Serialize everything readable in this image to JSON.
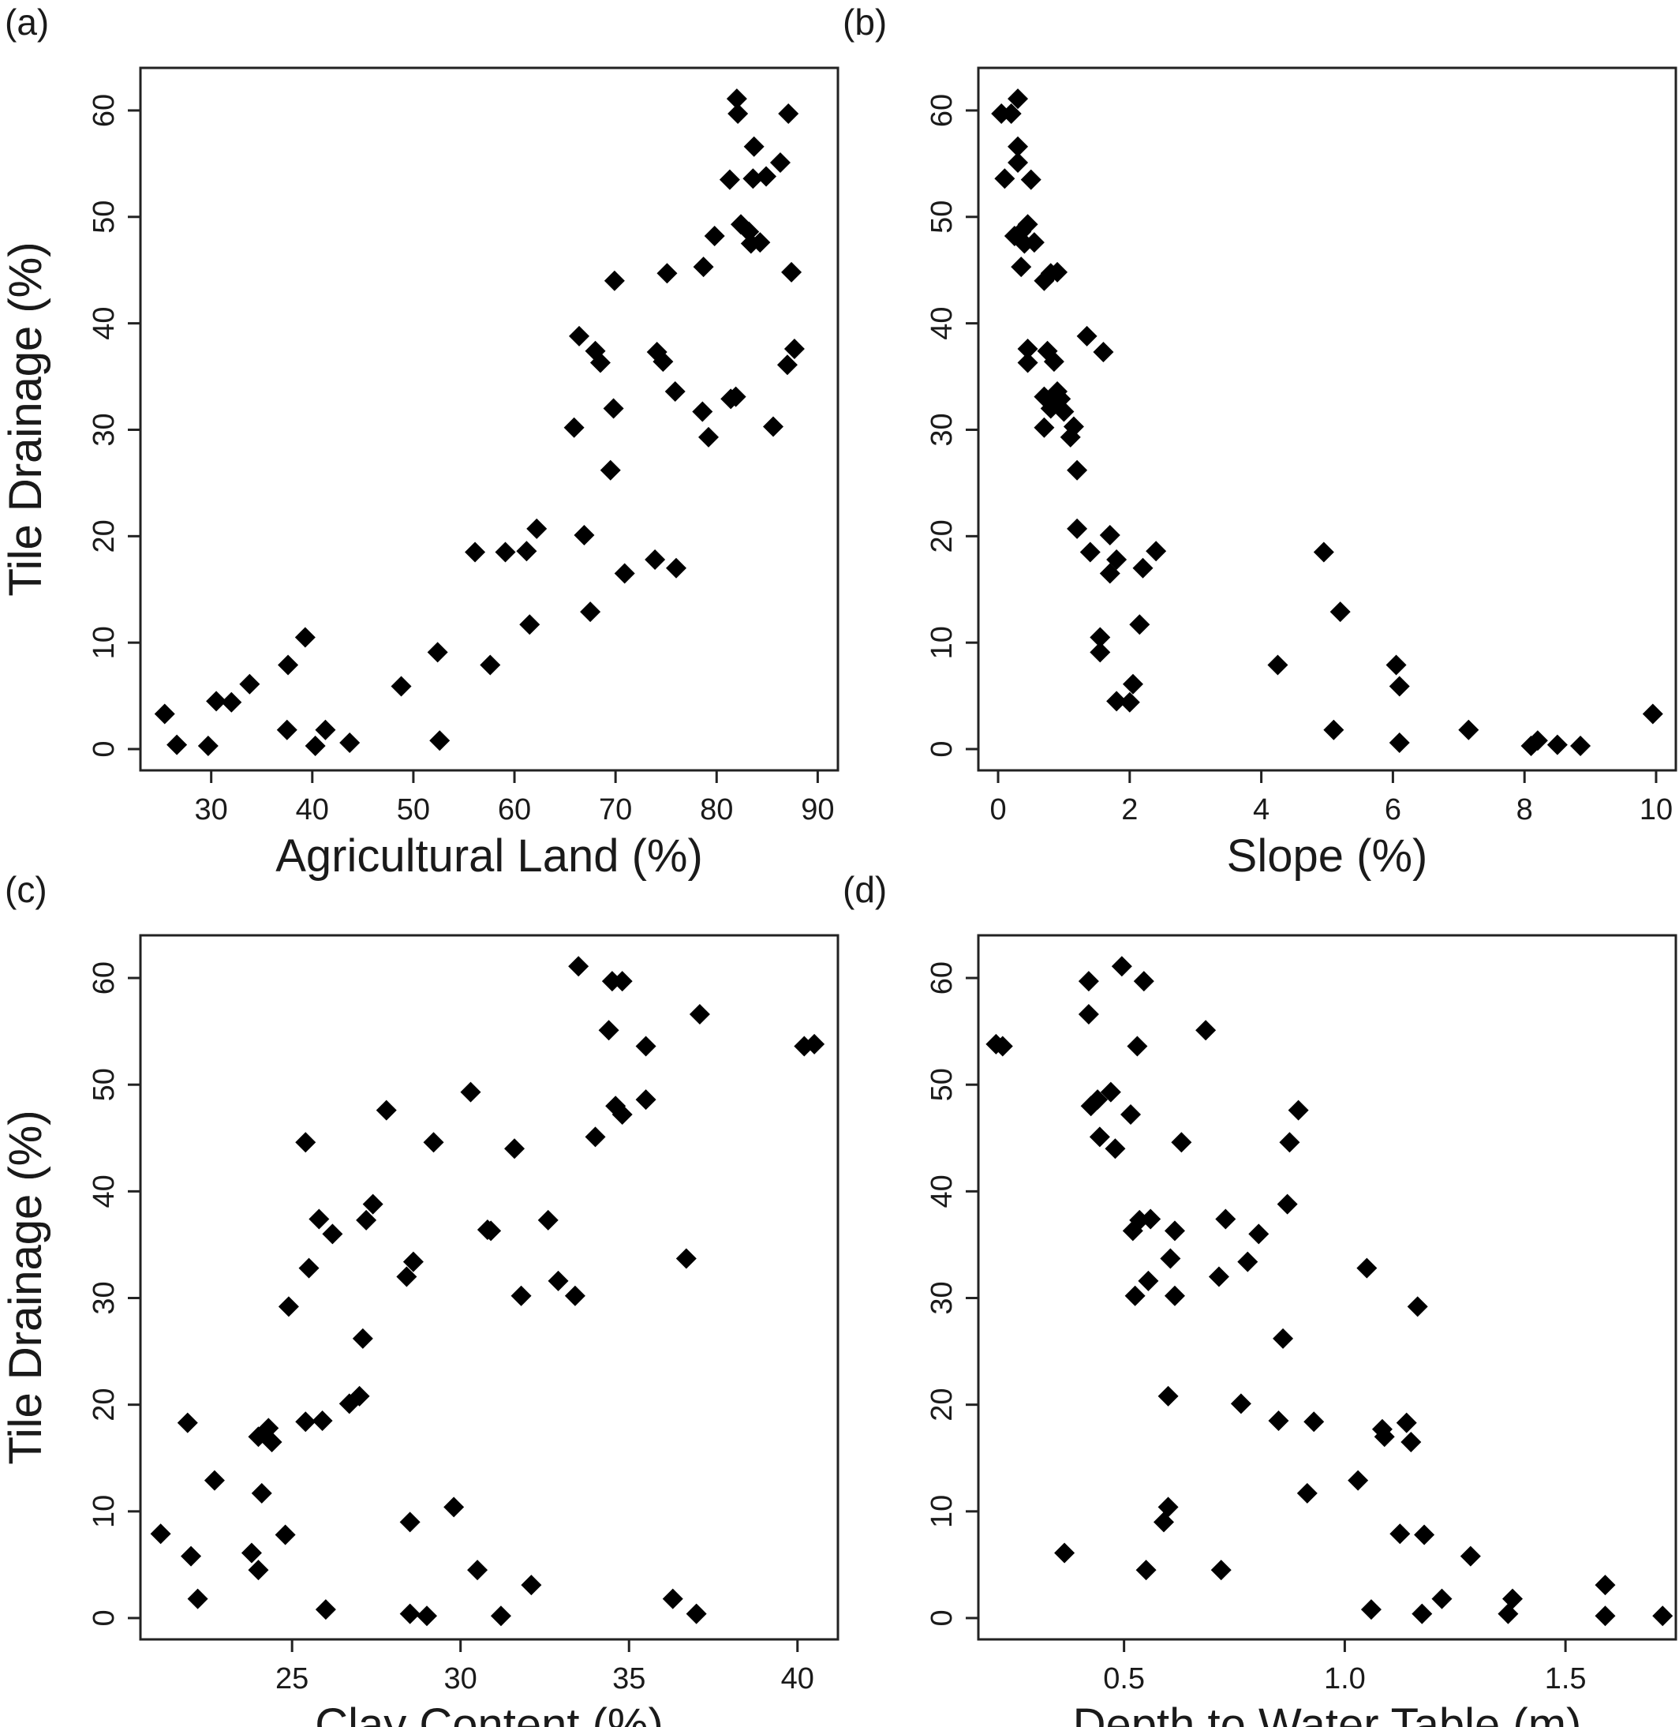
{
  "chart_data": [
    {
      "type": "scatter",
      "panel_label": "(a)",
      "xlabel": "Agricultural Land (%)",
      "ylabel": "Tile Drainage (%)",
      "xlim": [
        23,
        92
      ],
      "ylim": [
        -2,
        64
      ],
      "xticks": [
        30,
        40,
        50,
        60,
        70,
        80,
        90
      ],
      "yticks": [
        0,
        10,
        20,
        30,
        40,
        50,
        60
      ],
      "x_tick_labels": [
        "30",
        "40",
        "50",
        "60",
        "70",
        "80",
        "90"
      ],
      "y_tick_labels": [
        "0",
        "10",
        "20",
        "30",
        "40",
        "50",
        "60"
      ],
      "marker": "diamond",
      "color": "#000000",
      "points": [
        [
          25.4,
          3.3
        ],
        [
          26.6,
          0.4
        ],
        [
          29.7,
          0.3
        ],
        [
          30.5,
          4.5
        ],
        [
          32.0,
          4.4
        ],
        [
          33.8,
          6.1
        ],
        [
          37.5,
          1.8
        ],
        [
          37.6,
          7.9
        ],
        [
          39.3,
          10.5
        ],
        [
          40.3,
          0.3
        ],
        [
          41.3,
          1.8
        ],
        [
          43.7,
          0.6
        ],
        [
          48.8,
          5.9
        ],
        [
          52.4,
          9.1
        ],
        [
          52.6,
          0.8
        ],
        [
          56.1,
          18.5
        ],
        [
          57.6,
          7.9
        ],
        [
          59.1,
          18.5
        ],
        [
          61.2,
          18.6
        ],
        [
          61.5,
          11.7
        ],
        [
          62.2,
          20.7
        ],
        [
          65.9,
          30.2
        ],
        [
          66.4,
          38.8
        ],
        [
          66.9,
          20.1
        ],
        [
          67.5,
          12.9
        ],
        [
          68.0,
          37.4
        ],
        [
          68.5,
          36.3
        ],
        [
          69.5,
          26.2
        ],
        [
          69.8,
          32.0
        ],
        [
          69.9,
          44.0
        ],
        [
          70.9,
          16.5
        ],
        [
          73.9,
          17.8
        ],
        [
          74.1,
          37.3
        ],
        [
          74.7,
          36.4
        ],
        [
          75.1,
          44.7
        ],
        [
          75.9,
          33.6
        ],
        [
          76.0,
          17.0
        ],
        [
          78.6,
          31.7
        ],
        [
          78.7,
          45.3
        ],
        [
          79.2,
          29.3
        ],
        [
          79.8,
          48.2
        ],
        [
          81.3,
          53.5
        ],
        [
          81.4,
          32.9
        ],
        [
          81.9,
          33.1
        ],
        [
          82.0,
          61.1
        ],
        [
          82.1,
          59.7
        ],
        [
          82.4,
          49.3
        ],
        [
          83.2,
          48.6
        ],
        [
          83.4,
          47.5
        ],
        [
          83.6,
          53.6
        ],
        [
          83.7,
          56.6
        ],
        [
          84.3,
          47.6
        ],
        [
          84.9,
          53.8
        ],
        [
          85.6,
          30.3
        ],
        [
          86.3,
          55.1
        ],
        [
          87.0,
          36.1
        ],
        [
          87.1,
          59.7
        ],
        [
          87.4,
          44.8
        ],
        [
          87.7,
          37.6
        ]
      ]
    },
    {
      "type": "scatter",
      "panel_label": "(b)",
      "xlabel": "Slope (%)",
      "ylabel": "Tile Drainage (%)",
      "xlim": [
        -0.3,
        10.3
      ],
      "ylim": [
        -2,
        64
      ],
      "xticks": [
        0,
        2,
        4,
        6,
        8,
        10
      ],
      "yticks": [
        0,
        10,
        20,
        30,
        40,
        50,
        60
      ],
      "x_tick_labels": [
        "0",
        "2",
        "4",
        "6",
        "8",
        "10"
      ],
      "y_tick_labels": [
        "0",
        "10",
        "20",
        "30",
        "40",
        "50",
        "60"
      ],
      "marker": "diamond",
      "color": "#000000",
      "points": [
        [
          0.05,
          59.7
        ],
        [
          0.1,
          53.6
        ],
        [
          0.2,
          59.7
        ],
        [
          0.25,
          48.2
        ],
        [
          0.3,
          61.1
        ],
        [
          0.3,
          55.1
        ],
        [
          0.3,
          56.6
        ],
        [
          0.35,
          48.6
        ],
        [
          0.35,
          45.3
        ],
        [
          0.4,
          47.5
        ],
        [
          0.45,
          49.3
        ],
        [
          0.45,
          37.6
        ],
        [
          0.45,
          36.3
        ],
        [
          0.5,
          53.5
        ],
        [
          0.55,
          47.6
        ],
        [
          0.7,
          44.0
        ],
        [
          0.7,
          33.1
        ],
        [
          0.7,
          30.2
        ],
        [
          0.75,
          37.4
        ],
        [
          0.8,
          44.7
        ],
        [
          0.8,
          32.0
        ],
        [
          0.85,
          36.4
        ],
        [
          0.9,
          44.8
        ],
        [
          0.9,
          33.6
        ],
        [
          0.95,
          32.9
        ],
        [
          1.0,
          31.7
        ],
        [
          1.1,
          29.3
        ],
        [
          1.15,
          30.3
        ],
        [
          1.2,
          26.2
        ],
        [
          1.2,
          20.7
        ],
        [
          1.35,
          38.8
        ],
        [
          1.4,
          18.5
        ],
        [
          1.55,
          10.5
        ],
        [
          1.55,
          9.1
        ],
        [
          1.6,
          37.3
        ],
        [
          1.7,
          20.1
        ],
        [
          1.7,
          16.5
        ],
        [
          1.8,
          17.8
        ],
        [
          1.8,
          4.5
        ],
        [
          2.0,
          4.4
        ],
        [
          2.05,
          6.1
        ],
        [
          2.15,
          11.7
        ],
        [
          2.2,
          17.0
        ],
        [
          2.4,
          18.6
        ],
        [
          4.25,
          7.9
        ],
        [
          4.95,
          18.5
        ],
        [
          5.1,
          1.8
        ],
        [
          5.2,
          12.9
        ],
        [
          6.05,
          7.9
        ],
        [
          6.1,
          5.9
        ],
        [
          6.1,
          0.6
        ],
        [
          7.15,
          1.8
        ],
        [
          8.1,
          0.3
        ],
        [
          8.2,
          0.8
        ],
        [
          8.5,
          0.4
        ],
        [
          8.85,
          0.3
        ],
        [
          9.95,
          3.3
        ]
      ]
    },
    {
      "type": "scatter",
      "panel_label": "(c)",
      "xlabel": "Clay Content (%)",
      "ylabel": "Tile Drainage (%)",
      "xlim": [
        20.5,
        41.2
      ],
      "ylim": [
        -2,
        64
      ],
      "xticks": [
        25,
        30,
        35,
        40
      ],
      "yticks": [
        0,
        10,
        20,
        30,
        40,
        50,
        60
      ],
      "x_tick_labels": [
        "25",
        "30",
        "35",
        "40"
      ],
      "y_tick_labels": [
        "0",
        "10",
        "20",
        "30",
        "40",
        "50",
        "60"
      ],
      "marker": "diamond",
      "color": "#000000",
      "points": [
        [
          21.1,
          7.9
        ],
        [
          21.9,
          18.3
        ],
        [
          22.0,
          5.8
        ],
        [
          22.2,
          1.8
        ],
        [
          22.7,
          12.9
        ],
        [
          23.8,
          6.1
        ],
        [
          24.0,
          17.0
        ],
        [
          24.0,
          4.5
        ],
        [
          24.1,
          11.7
        ],
        [
          24.3,
          17.8
        ],
        [
          24.4,
          16.5
        ],
        [
          24.8,
          7.8
        ],
        [
          24.9,
          29.2
        ],
        [
          25.4,
          44.6
        ],
        [
          25.4,
          18.4
        ],
        [
          25.5,
          32.8
        ],
        [
          25.8,
          37.4
        ],
        [
          25.9,
          18.5
        ],
        [
          26.0,
          0.8
        ],
        [
          26.2,
          36.0
        ],
        [
          26.7,
          20.1
        ],
        [
          27.0,
          20.8
        ],
        [
          27.1,
          26.2
        ],
        [
          27.2,
          37.3
        ],
        [
          27.4,
          38.8
        ],
        [
          27.8,
          47.6
        ],
        [
          28.4,
          32.0
        ],
        [
          28.5,
          9.0
        ],
        [
          28.6,
          33.4
        ],
        [
          28.5,
          0.4
        ],
        [
          29.0,
          0.2
        ],
        [
          29.2,
          44.6
        ],
        [
          29.8,
          10.4
        ],
        [
          30.3,
          49.3
        ],
        [
          30.5,
          4.5
        ],
        [
          30.8,
          36.4
        ],
        [
          30.9,
          36.3
        ],
        [
          31.2,
          0.2
        ],
        [
          31.6,
          44.0
        ],
        [
          31.8,
          30.2
        ],
        [
          32.1,
          3.1
        ],
        [
          32.6,
          37.3
        ],
        [
          32.9,
          31.6
        ],
        [
          33.4,
          30.2
        ],
        [
          33.5,
          61.1
        ],
        [
          34.0,
          45.1
        ],
        [
          34.4,
          55.1
        ],
        [
          34.5,
          59.7
        ],
        [
          34.6,
          48.0
        ],
        [
          34.8,
          59.7
        ],
        [
          34.8,
          47.2
        ],
        [
          35.5,
          53.6
        ],
        [
          35.5,
          48.6
        ],
        [
          36.3,
          1.8
        ],
        [
          36.7,
          33.7
        ],
        [
          37.0,
          0.4
        ],
        [
          37.1,
          56.6
        ],
        [
          40.2,
          53.6
        ],
        [
          40.5,
          53.8
        ]
      ]
    },
    {
      "type": "scatter",
      "panel_label": "(d)",
      "xlabel": "Depth to Water Table (m)",
      "ylabel": "Tile Drainage (%)",
      "xlim": [
        0.17,
        1.75
      ],
      "ylim": [
        -2,
        64
      ],
      "xticks": [
        0.5,
        1.0,
        1.5
      ],
      "yticks": [
        0,
        10,
        20,
        30,
        40,
        50,
        60
      ],
      "x_tick_labels": [
        "0.5",
        "1.0",
        "1.5"
      ],
      "y_tick_labels": [
        "0",
        "10",
        "20",
        "30",
        "40",
        "50",
        "60"
      ],
      "marker": "diamond",
      "color": "#000000",
      "points": [
        [
          0.21,
          53.8
        ],
        [
          0.225,
          53.6
        ],
        [
          0.365,
          6.1
        ],
        [
          0.42,
          59.7
        ],
        [
          0.42,
          56.6
        ],
        [
          0.425,
          48.0
        ],
        [
          0.44,
          48.6
        ],
        [
          0.445,
          45.1
        ],
        [
          0.47,
          49.3
        ],
        [
          0.48,
          44.0
        ],
        [
          0.495,
          61.1
        ],
        [
          0.515,
          47.2
        ],
        [
          0.52,
          36.3
        ],
        [
          0.525,
          30.2
        ],
        [
          0.53,
          53.6
        ],
        [
          0.535,
          37.3
        ],
        [
          0.545,
          59.7
        ],
        [
          0.55,
          4.5
        ],
        [
          0.555,
          31.6
        ],
        [
          0.56,
          37.4
        ],
        [
          0.59,
          9.0
        ],
        [
          0.6,
          10.4
        ],
        [
          0.6,
          20.8
        ],
        [
          0.605,
          33.7
        ],
        [
          0.615,
          36.3
        ],
        [
          0.615,
          30.2
        ],
        [
          0.63,
          44.6
        ],
        [
          0.685,
          55.1
        ],
        [
          0.715,
          32.0
        ],
        [
          0.72,
          4.5
        ],
        [
          0.73,
          37.4
        ],
        [
          0.765,
          20.1
        ],
        [
          0.78,
          33.4
        ],
        [
          0.805,
          36.0
        ],
        [
          0.85,
          18.5
        ],
        [
          0.86,
          26.2
        ],
        [
          0.87,
          38.8
        ],
        [
          0.875,
          44.6
        ],
        [
          0.895,
          47.6
        ],
        [
          0.915,
          11.7
        ],
        [
          0.93,
          18.4
        ],
        [
          1.03,
          12.9
        ],
        [
          1.05,
          32.8
        ],
        [
          1.06,
          0.8
        ],
        [
          1.085,
          17.7
        ],
        [
          1.09,
          17.0
        ],
        [
          1.125,
          7.9
        ],
        [
          1.14,
          18.3
        ],
        [
          1.15,
          16.5
        ],
        [
          1.165,
          29.2
        ],
        [
          1.175,
          0.4
        ],
        [
          1.18,
          7.8
        ],
        [
          1.22,
          1.8
        ],
        [
          1.285,
          5.8
        ],
        [
          1.37,
          0.4
        ],
        [
          1.38,
          1.8
        ],
        [
          1.59,
          3.1
        ],
        [
          1.59,
          0.2
        ],
        [
          1.72,
          0.2
        ]
      ]
    }
  ]
}
